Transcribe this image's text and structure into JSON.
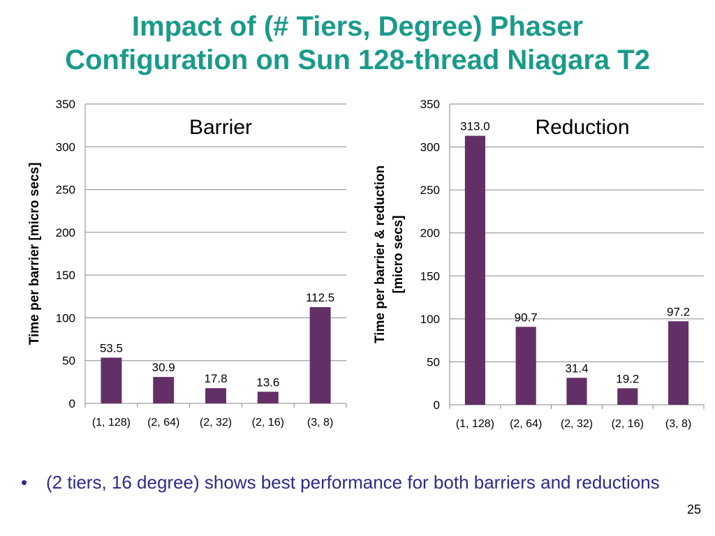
{
  "colors": {
    "title": "#1a9a8a",
    "bar": "#622f66",
    "bullet_text": "#2b2b8c",
    "grid": "#868686"
  },
  "slide": {
    "title_line1": "Impact of (# Tiers, Degree) Phaser",
    "title_line2": "Configuration on Sun 128-thread Niagara T2",
    "bullet_marker": "•",
    "bullet_text": "(2 tiers, 16 degree) shows best performance for both barriers and reductions",
    "page_number": "25"
  },
  "chart_data": [
    {
      "type": "bar",
      "title": "Barrier",
      "ylabel": "Time per barrier [micro secs]",
      "xlabel": "",
      "categories": [
        "(1, 128)",
        "(2, 64)",
        "(2, 32)",
        "(2, 16)",
        "(3, 8)"
      ],
      "values": [
        53.5,
        30.9,
        17.8,
        13.6,
        112.5
      ],
      "value_labels": [
        "53.5",
        "30.9",
        "17.8",
        "13.6",
        "112.5"
      ],
      "ylim": [
        0,
        350
      ],
      "yticks": [
        "0",
        "50",
        "100",
        "150",
        "200",
        "250",
        "300",
        "350"
      ],
      "grid": true,
      "legend": "none"
    },
    {
      "type": "bar",
      "title": "Reduction",
      "ylabel_lines": [
        "Time per barrier & reduction",
        "[micro secs]"
      ],
      "xlabel": "",
      "categories": [
        "(1, 128)",
        "(2, 64)",
        "(2, 32)",
        "(2, 16)",
        "(3, 8)"
      ],
      "values": [
        313.0,
        90.7,
        31.4,
        19.2,
        97.2
      ],
      "value_labels": [
        "313.0",
        "90.7",
        "31.4",
        "19.2",
        "97.2"
      ],
      "ylim": [
        0,
        350
      ],
      "yticks": [
        "0",
        "50",
        "100",
        "150",
        "200",
        "250",
        "300",
        "350"
      ],
      "grid": true,
      "legend": "none"
    }
  ]
}
